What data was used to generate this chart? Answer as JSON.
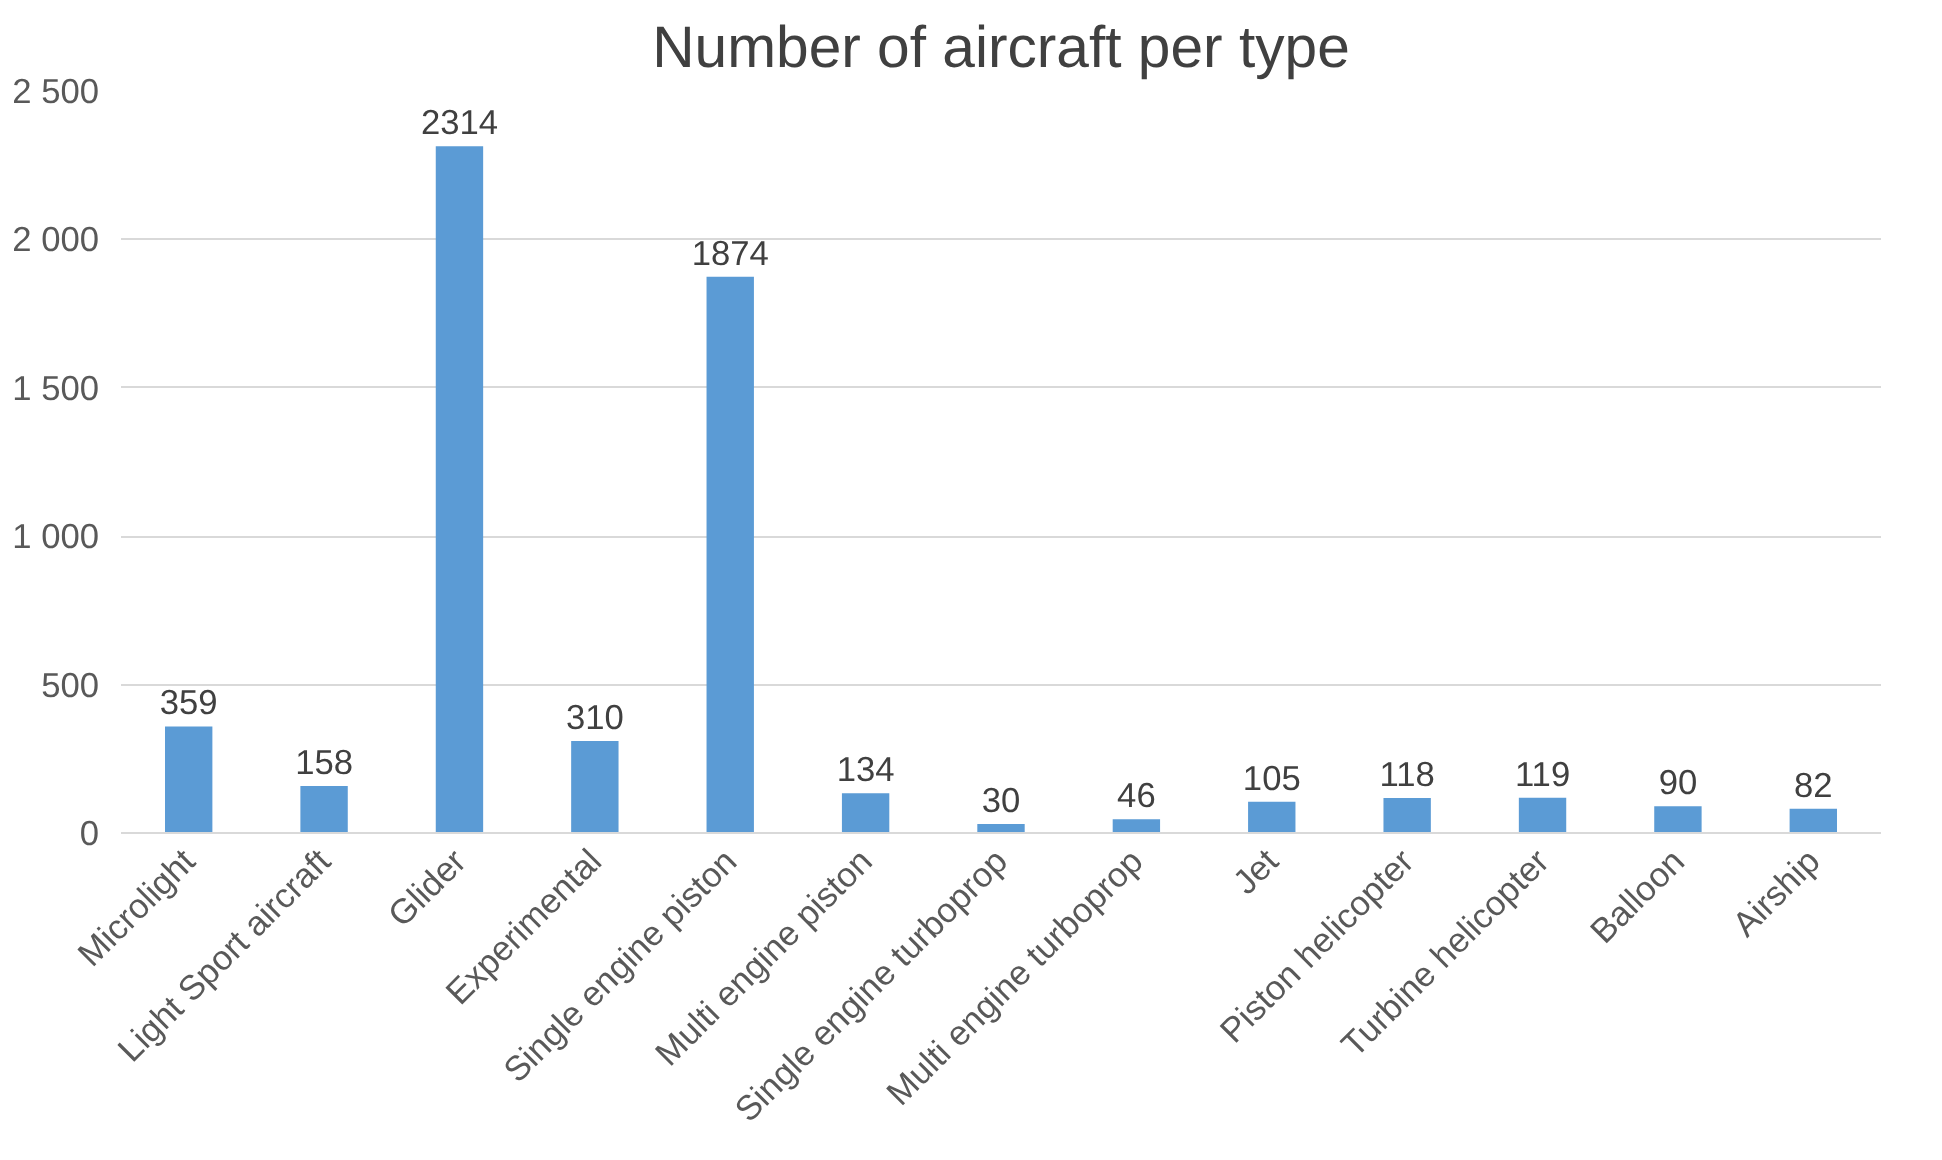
{
  "chart_data": {
    "type": "bar",
    "title": "Number of aircraft per type",
    "categories": [
      "Microlight",
      "Light Sport aircraft",
      "Glider",
      "Experimental",
      "Single engine piston",
      "Multi engine piston",
      "Single engine turboprop",
      "Multi engine turboprop",
      "Jet",
      "Piston helicopter",
      "Turbine helicopter",
      "Balloon",
      "Airship"
    ],
    "values": [
      359,
      158,
      2314,
      310,
      1874,
      134,
      30,
      46,
      105,
      118,
      119,
      90,
      82
    ],
    "color": "#5b9bd5",
    "ylim": [
      0,
      2500
    ],
    "yticks": [
      0,
      500,
      {
        "value": 1000,
        "label": "1 000"
      },
      {
        "value": 1500,
        "label": "1 500"
      },
      {
        "value": 2000,
        "label": "2 000"
      },
      {
        "value": 2500,
        "label": "2 500"
      }
    ],
    "grid": "y",
    "data_labels": true
  }
}
